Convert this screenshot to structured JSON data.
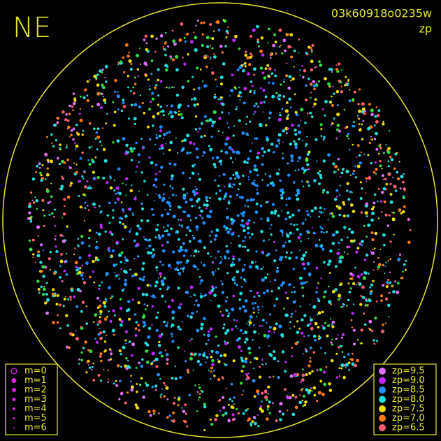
{
  "header": {
    "direction": "NE",
    "image_id": "03k60918o0235w",
    "mode": "zp"
  },
  "legend_m": {
    "items": [
      "m=0",
      "m=1",
      "m=2",
      "m=3",
      "m=4",
      "m=5",
      "m=6"
    ]
  },
  "legend_zp": {
    "items": [
      {
        "label": "zp=9.5",
        "color": "#e070ff"
      },
      {
        "label": "zp=9.0",
        "color": "#c028ff"
      },
      {
        "label": "zp=8.5",
        "color": "#2090ff"
      },
      {
        "label": "zp=8.0",
        "color": "#20e0e0"
      },
      {
        "label": "zp=7.5",
        "color": "#f0e000"
      },
      {
        "label": "zp=7.0",
        "color": "#ff7a10"
      },
      {
        "label": "zp=6.5",
        "color": "#ff6070"
      }
    ]
  }
}
